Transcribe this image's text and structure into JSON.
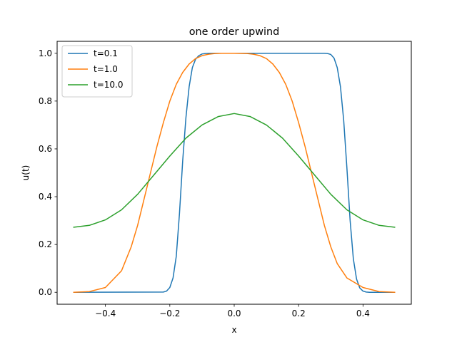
{
  "chart_data": {
    "type": "line",
    "title": "one order upwind",
    "xlabel": "x",
    "ylabel": "u(t)",
    "xlim": [
      -0.55,
      0.55
    ],
    "ylim": [
      -0.05,
      1.05
    ],
    "xticks": [
      -0.4,
      -0.2,
      0.0,
      0.2,
      0.4
    ],
    "xtick_labels": [
      "−0.4",
      "−0.2",
      "0.0",
      "0.2",
      "0.4"
    ],
    "yticks": [
      0.0,
      0.2,
      0.4,
      0.6,
      0.8,
      1.0
    ],
    "ytick_labels": [
      "0.0",
      "0.2",
      "0.4",
      "0.6",
      "0.8",
      "1.0"
    ],
    "grid": false,
    "legend_position": "top-left",
    "series": [
      {
        "name": "t=0.1",
        "color": "#1f77b4",
        "x": [
          -0.5,
          -0.22,
          -0.21,
          -0.2,
          -0.19,
          -0.18,
          -0.17,
          -0.16,
          -0.15,
          -0.14,
          -0.13,
          -0.12,
          -0.11,
          -0.1,
          -0.09,
          -0.08,
          -0.06,
          0.28,
          0.29,
          0.3,
          0.31,
          0.32,
          0.33,
          0.34,
          0.35,
          0.36,
          0.37,
          0.38,
          0.39,
          0.4,
          0.41,
          0.42,
          0.5
        ],
        "y": [
          0.0,
          0.001,
          0.005,
          0.02,
          0.06,
          0.15,
          0.33,
          0.55,
          0.73,
          0.86,
          0.94,
          0.975,
          0.99,
          0.997,
          0.999,
          1.0,
          1.0,
          1.0,
          0.999,
          0.995,
          0.98,
          0.94,
          0.86,
          0.72,
          0.52,
          0.3,
          0.14,
          0.055,
          0.018,
          0.005,
          0.001,
          0.0,
          0.0
        ]
      },
      {
        "name": "t=1.0",
        "color": "#ff7f0e",
        "x": [
          -0.5,
          -0.45,
          -0.4,
          -0.35,
          -0.32,
          -0.3,
          -0.28,
          -0.26,
          -0.24,
          -0.22,
          -0.2,
          -0.18,
          -0.16,
          -0.14,
          -0.12,
          -0.1,
          -0.08,
          -0.06,
          -0.04,
          0.0,
          0.04,
          0.06,
          0.08,
          0.1,
          0.12,
          0.14,
          0.16,
          0.18,
          0.2,
          0.22,
          0.24,
          0.26,
          0.28,
          0.3,
          0.32,
          0.35,
          0.4,
          0.45,
          0.5
        ],
        "y": [
          0.0,
          0.003,
          0.02,
          0.09,
          0.19,
          0.28,
          0.39,
          0.5,
          0.61,
          0.71,
          0.8,
          0.87,
          0.92,
          0.955,
          0.978,
          0.99,
          0.996,
          0.999,
          1.0,
          1.0,
          0.999,
          0.996,
          0.99,
          0.978,
          0.955,
          0.92,
          0.87,
          0.8,
          0.71,
          0.61,
          0.5,
          0.39,
          0.28,
          0.19,
          0.12,
          0.06,
          0.02,
          0.003,
          0.0
        ]
      },
      {
        "name": "t=10.0",
        "color": "#2ca02c",
        "x": [
          -0.5,
          -0.45,
          -0.4,
          -0.35,
          -0.3,
          -0.25,
          -0.2,
          -0.15,
          -0.1,
          -0.05,
          0.0,
          0.05,
          0.1,
          0.15,
          0.2,
          0.25,
          0.3,
          0.35,
          0.4,
          0.45,
          0.5
        ],
        "y": [
          0.272,
          0.28,
          0.303,
          0.345,
          0.41,
          0.49,
          0.57,
          0.645,
          0.7,
          0.735,
          0.748,
          0.735,
          0.7,
          0.645,
          0.57,
          0.49,
          0.41,
          0.345,
          0.303,
          0.28,
          0.272
        ]
      }
    ]
  }
}
